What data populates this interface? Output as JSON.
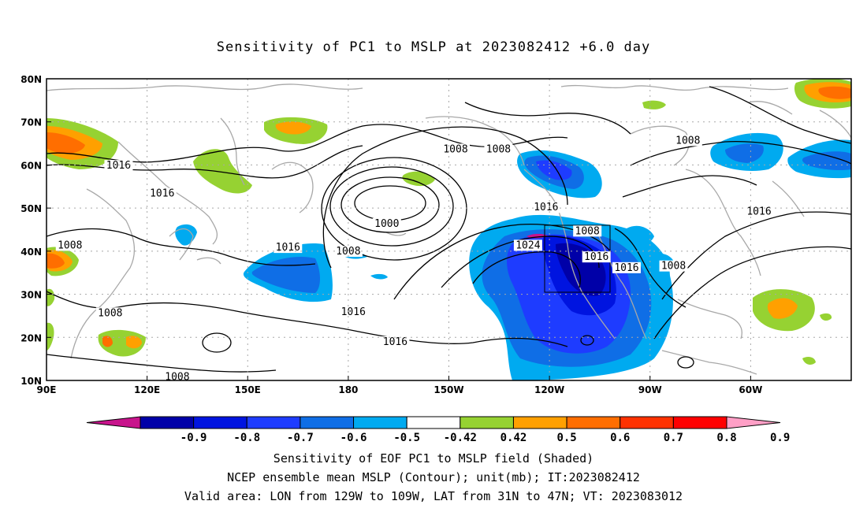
{
  "title": "Sensitivity of PC1 to MSLP at 2023082412 +6.0 day",
  "map": {
    "lon_ticks": [
      "90E",
      "120E",
      "150E",
      "180",
      "150W",
      "120W",
      "90W",
      "60W"
    ],
    "lat_ticks": [
      "80N",
      "70N",
      "60N",
      "50N",
      "40N",
      "30N",
      "20N",
      "10N"
    ]
  },
  "colorbar": {
    "labels": [
      "-0.9",
      "-0.8",
      "-0.7",
      "-0.6",
      "-0.5",
      "-0.42",
      "0.42",
      "0.5",
      "0.6",
      "0.7",
      "0.8",
      "0.9"
    ],
    "colors": {
      "under": "#c8148c",
      "bins": [
        "#0000a8",
        "#0014e0",
        "#1e3cff",
        "#0f6ee6",
        "#00aaf0",
        "#ffffff",
        "#96d232",
        "#ffa000",
        "#ff6e00",
        "#ff3200",
        "#ff0000"
      ],
      "over": "#ff9fc6"
    }
  },
  "contour_labels": [
    {
      "text": "1008",
      "lon": 212,
      "lat": 63.3
    },
    {
      "text": "1008",
      "lon": 224.8,
      "lat": 63.3
    },
    {
      "text": "1016",
      "lon": 239,
      "lat": 49.8
    },
    {
      "text": "1024",
      "lon": 233.6,
      "lat": 41
    },
    {
      "text": "1008",
      "lon": 251.3,
      "lat": 44.3
    },
    {
      "text": "1016",
      "lon": 254,
      "lat": 38.3
    },
    {
      "text": "1016",
      "lon": 263,
      "lat": 35.8
    },
    {
      "text": "1008",
      "lon": 277,
      "lat": 36.2
    },
    {
      "text": "1008",
      "lon": 281.3,
      "lat": 65.3
    },
    {
      "text": "1016",
      "lon": 302.5,
      "lat": 48.8
    },
    {
      "text": "1016",
      "lon": 111.5,
      "lat": 59.5
    },
    {
      "text": "1016",
      "lon": 124.5,
      "lat": 53
    },
    {
      "text": "1008",
      "lon": 97,
      "lat": 41
    },
    {
      "text": "1016",
      "lon": 162,
      "lat": 40.5
    },
    {
      "text": "1000",
      "lon": 191.5,
      "lat": 46
    },
    {
      "text": "1008",
      "lon": 180,
      "lat": 39.6
    },
    {
      "text": "1008",
      "lon": 109,
      "lat": 25.3
    },
    {
      "text": "1016",
      "lon": 181.5,
      "lat": 25.5
    },
    {
      "text": "1016",
      "lon": 194,
      "lat": 18.6
    },
    {
      "text": "1008",
      "lon": 129,
      "lat": 10.5
    }
  ],
  "captions": [
    "Sensitivity of EOF PC1 to MSLP field (Shaded)",
    "NCEP ensemble mean MSLP (Contour); unit(mb); IT:2023082412",
    "Valid area: LON from 129W to 109W, LAT from 31N to 47N; VT: 2023083012"
  ]
}
